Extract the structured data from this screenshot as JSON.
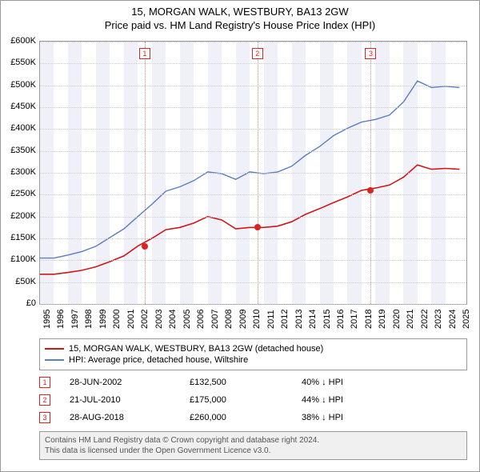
{
  "title": {
    "line1": "15, MORGAN WALK, WESTBURY, BA13 2GW",
    "line2": "Price paid vs. HM Land Registry's House Price Index (HPI)"
  },
  "chart": {
    "type": "line",
    "x_range": [
      1995,
      2025.5
    ],
    "y_range": [
      0,
      600000
    ],
    "y_ticks": [
      0,
      50000,
      100000,
      150000,
      200000,
      250000,
      300000,
      350000,
      400000,
      450000,
      500000,
      550000,
      600000
    ],
    "y_tick_labels": [
      "£0",
      "£50K",
      "£100K",
      "£150K",
      "£200K",
      "£250K",
      "£300K",
      "£350K",
      "£400K",
      "£450K",
      "£500K",
      "£550K",
      "£600K"
    ],
    "x_ticks": [
      1995,
      1996,
      1997,
      1998,
      1999,
      2000,
      2001,
      2002,
      2003,
      2004,
      2005,
      2006,
      2007,
      2008,
      2009,
      2010,
      2011,
      2012,
      2013,
      2014,
      2015,
      2016,
      2017,
      2018,
      2019,
      2020,
      2021,
      2022,
      2023,
      2024,
      2025
    ],
    "background_color": "#ffffff",
    "grid_color": "#cccccc",
    "shaded_bands": [
      [
        1995,
        1996
      ],
      [
        1997,
        1998
      ],
      [
        1999,
        2000
      ],
      [
        2001,
        2002
      ],
      [
        2003,
        2004
      ],
      [
        2005,
        2006
      ],
      [
        2007,
        2008
      ],
      [
        2009,
        2010
      ],
      [
        2011,
        2012
      ],
      [
        2013,
        2014
      ],
      [
        2015,
        2016
      ],
      [
        2017,
        2018
      ],
      [
        2019,
        2020
      ],
      [
        2021,
        2022
      ],
      [
        2023,
        2024
      ]
    ],
    "shaded_color": "#f0f0f8",
    "series": [
      {
        "name": "hpi",
        "color": "#5a7fc2",
        "width": 1.4,
        "data": [
          [
            1995,
            105000
          ],
          [
            1996,
            105000
          ],
          [
            1997,
            112000
          ],
          [
            1998,
            120000
          ],
          [
            1999,
            132000
          ],
          [
            2000,
            152000
          ],
          [
            2001,
            172000
          ],
          [
            2002,
            200000
          ],
          [
            2003,
            228000
          ],
          [
            2004,
            258000
          ],
          [
            2005,
            268000
          ],
          [
            2006,
            282000
          ],
          [
            2007,
            302000
          ],
          [
            2008,
            298000
          ],
          [
            2009,
            285000
          ],
          [
            2010,
            302000
          ],
          [
            2011,
            298000
          ],
          [
            2012,
            302000
          ],
          [
            2013,
            315000
          ],
          [
            2014,
            340000
          ],
          [
            2015,
            360000
          ],
          [
            2016,
            385000
          ],
          [
            2017,
            402000
          ],
          [
            2018,
            416000
          ],
          [
            2019,
            422000
          ],
          [
            2020,
            432000
          ],
          [
            2021,
            462000
          ],
          [
            2022,
            510000
          ],
          [
            2023,
            495000
          ],
          [
            2024,
            498000
          ],
          [
            2025,
            495000
          ]
        ]
      },
      {
        "name": "property",
        "color": "#d01818",
        "width": 1.6,
        "data": [
          [
            1995,
            68000
          ],
          [
            1996,
            68000
          ],
          [
            1997,
            72000
          ],
          [
            1998,
            77000
          ],
          [
            1999,
            85000
          ],
          [
            2000,
            97000
          ],
          [
            2001,
            110000
          ],
          [
            2002,
            132500
          ],
          [
            2003,
            150000
          ],
          [
            2004,
            170000
          ],
          [
            2005,
            175000
          ],
          [
            2006,
            185000
          ],
          [
            2007,
            200000
          ],
          [
            2008,
            192000
          ],
          [
            2009,
            172000
          ],
          [
            2010,
            175000
          ],
          [
            2011,
            175000
          ],
          [
            2012,
            178000
          ],
          [
            2013,
            188000
          ],
          [
            2014,
            205000
          ],
          [
            2015,
            218000
          ],
          [
            2016,
            232000
          ],
          [
            2017,
            245000
          ],
          [
            2018,
            260000
          ],
          [
            2019,
            265000
          ],
          [
            2020,
            272000
          ],
          [
            2021,
            290000
          ],
          [
            2022,
            318000
          ],
          [
            2023,
            308000
          ],
          [
            2024,
            310000
          ],
          [
            2025,
            308000
          ]
        ]
      }
    ],
    "markers": [
      {
        "n": "1",
        "x": 2002.49,
        "y": 132500
      },
      {
        "n": "2",
        "x": 2010.55,
        "y": 175000
      },
      {
        "n": "3",
        "x": 2018.66,
        "y": 260000
      }
    ]
  },
  "legend": {
    "items": [
      {
        "color": "#d01818",
        "label": "15, MORGAN WALK, WESTBURY, BA13 2GW (detached house)"
      },
      {
        "color": "#5a7fc2",
        "label": "HPI: Average price, detached house, Wiltshire"
      }
    ]
  },
  "sales": [
    {
      "n": "1",
      "date": "28-JUN-2002",
      "price": "£132,500",
      "pct": "40% ↓ HPI"
    },
    {
      "n": "2",
      "date": "21-JUL-2010",
      "price": "£175,000",
      "pct": "44% ↓ HPI"
    },
    {
      "n": "3",
      "date": "28-AUG-2018",
      "price": "£260,000",
      "pct": "38% ↓ HPI"
    }
  ],
  "footer": {
    "line1": "Contains HM Land Registry data © Crown copyright and database right 2024.",
    "line2": "This data is licensed under the Open Government Licence v3.0."
  }
}
